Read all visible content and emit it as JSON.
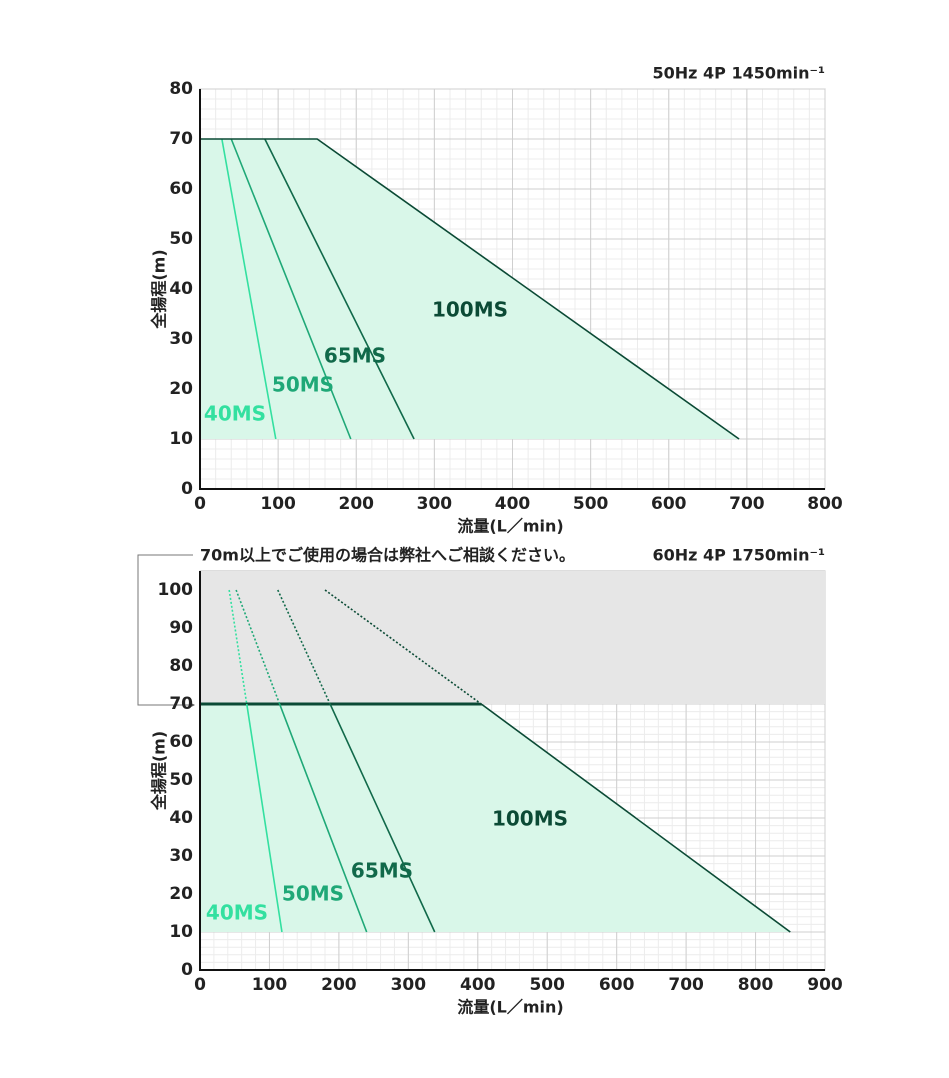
{
  "chart_data": [
    {
      "type": "line",
      "title": "50Hz 4P 1450min⁻¹",
      "xlabel": "流量(L／min)",
      "ylabel": "全揚程(m)",
      "xlim": [
        0,
        800
      ],
      "ylim": [
        0,
        80
      ],
      "xticks": [
        0,
        100,
        200,
        300,
        400,
        500,
        600,
        700,
        800
      ],
      "yticks": [
        0,
        10,
        20,
        30,
        40,
        50,
        60,
        70,
        80
      ],
      "minor_xstep": 20,
      "minor_ystep": 2,
      "area_color": "#d9f7e9",
      "series": [
        {
          "name": "40MS",
          "color": "#33e0a0",
          "x": [
            28,
            97
          ],
          "values": [
            70,
            10
          ]
        },
        {
          "name": "50MS",
          "color": "#1fa877",
          "x": [
            40,
            193
          ],
          "values": [
            70,
            10
          ]
        },
        {
          "name": "65MS",
          "color": "#11694a",
          "x": [
            83,
            274
          ],
          "values": [
            70,
            10
          ]
        },
        {
          "name": "100MS",
          "color": "#0b4a35",
          "x": [
            0,
            150,
            690
          ],
          "values": [
            70,
            70,
            10
          ]
        }
      ]
    },
    {
      "type": "line",
      "title": "60Hz 4P 1750min⁻¹",
      "note": "70m以上でご使用の場合は弊社へご相談ください。",
      "xlabel": "流量(L／min)",
      "ylabel": "全揚程(m)",
      "xlim": [
        0,
        900
      ],
      "ylim": [
        0,
        105
      ],
      "xticks": [
        0,
        100,
        200,
        300,
        400,
        500,
        600,
        700,
        800,
        900
      ],
      "yticks": [
        0,
        10,
        20,
        30,
        40,
        50,
        60,
        70,
        80,
        90,
        100
      ],
      "minor_xstep": 20,
      "minor_ystep": 2,
      "area_color": "#d9f7e9",
      "recommended_max_head": 70,
      "zone_color": "#e6e6e6",
      "series": [
        {
          "name": "40MS",
          "color": "#33e0a0",
          "x": [
            42,
            118
          ],
          "values": [
            100,
            10
          ]
        },
        {
          "name": "50MS",
          "color": "#1fa877",
          "x": [
            52,
            240
          ],
          "values": [
            100,
            10
          ]
        },
        {
          "name": "65MS",
          "color": "#11694a",
          "x": [
            112,
            338
          ],
          "values": [
            100,
            10
          ]
        },
        {
          "name": "100MS",
          "color": "#0b4a35",
          "x": [
            180,
            405,
            850
          ],
          "values": [
            100,
            70,
            10
          ]
        }
      ]
    }
  ]
}
